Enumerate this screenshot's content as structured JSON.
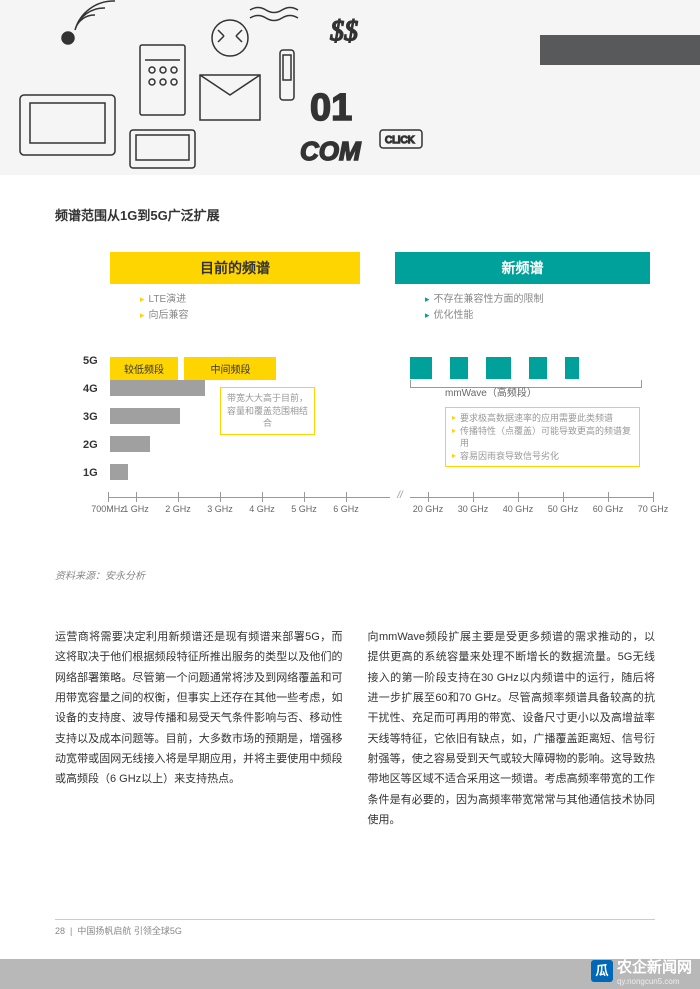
{
  "section_title": "频谱范围从1G到5G广泛扩展",
  "current": {
    "title": "目前的频谱",
    "bullets": [
      "LTE演进",
      "向后兼容"
    ],
    "bands": [
      "较低频段",
      "中间频段"
    ],
    "note": "带宽大大高于目前，容量和覆盖范围相结合"
  },
  "new": {
    "title": "新频谱",
    "bullets": [
      "不存在兼容性方面的限制",
      "优化性能"
    ],
    "mmwave_label": "mmWave（高频段）",
    "notes": [
      "要求极高数据速率的应用需要此类频谱",
      "传播特性（点覆盖）可能导致更高的频谱复用",
      "容易因雨衰导致信号劣化"
    ]
  },
  "bars": [
    {
      "label": "5G",
      "width": 0
    },
    {
      "label": "4G",
      "width": 95
    },
    {
      "label": "3G",
      "width": 70
    },
    {
      "label": "2G",
      "width": 40
    },
    {
      "label": "1G",
      "width": 18
    }
  ],
  "teal_blocks": [
    22,
    18,
    25,
    18,
    14
  ],
  "axis_left": [
    {
      "pos": 0,
      "label": "700MHz"
    },
    {
      "pos": 28,
      "label": "1 GHz"
    },
    {
      "pos": 70,
      "label": "2 GHz"
    },
    {
      "pos": 112,
      "label": "3 GHz"
    },
    {
      "pos": 154,
      "label": "4 GHz"
    },
    {
      "pos": 196,
      "label": "5 GHz"
    },
    {
      "pos": 238,
      "label": "6 GHz"
    }
  ],
  "axis_right": [
    {
      "pos": 320,
      "label": "20 GHz"
    },
    {
      "pos": 365,
      "label": "30 GHz"
    },
    {
      "pos": 410,
      "label": "40 GHz"
    },
    {
      "pos": 455,
      "label": "50 GHz"
    },
    {
      "pos": 500,
      "label": "60 GHz"
    },
    {
      "pos": 545,
      "label": "70 GHz"
    }
  ],
  "source": "资料来源：安永分析",
  "col1": "运营商将需要决定利用新频谱还是现有频谱来部署5G，而这将取决于他们根据频段特征所推出服务的类型以及他们的网络部署策略。尽管第一个问题通常将涉及到网络覆盖和可用带宽容量之间的权衡，但事实上还存在其他一些考虑，如设备的支持度、波导传播和易受天气条件影响与否、移动性支持以及成本问题等。目前，大多数市场的预期是，增强移动宽带或固网无线接入将是早期应用，并将主要使用中频段或高频段（6 GHz以上）来支持热点。",
  "col2": "向mmWave频段扩展主要是受更多频谱的需求推动的，以提供更高的系统容量来处理不断增长的数据流量。5G无线接入的第一阶段支持在30 GHz以内频谱中的运行，随后将进一步扩展至60和70 GHz。尽管高频率频谱具备较高的抗干扰性、充足而可再用的带宽、设备尺寸更小以及高增益率天线等特征，它依旧有缺点，如，广播覆盖距离短、信号衍射强等，使之容易受到天气或较大障碍物的影响。这导致热带地区等区域不适合采用这一频谱。考虑高频率带宽的工作条件是有必要的，因为高频率带宽常常与其他通信技术协同使用。",
  "footer": {
    "page": "28",
    "title": "中国扬帆启航 引领全球5G"
  },
  "watermark": {
    "logo": "瓜",
    "text": "农企新闻网",
    "url": "qy.nongcun5.com"
  },
  "colors": {
    "yellow": "#ffd500",
    "teal": "#00a19a",
    "gray_bar": "#a0a0a0",
    "header_bar": "#58595b",
    "footer_bar": "#b8b8b8",
    "wm_blue": "#0068b7"
  }
}
